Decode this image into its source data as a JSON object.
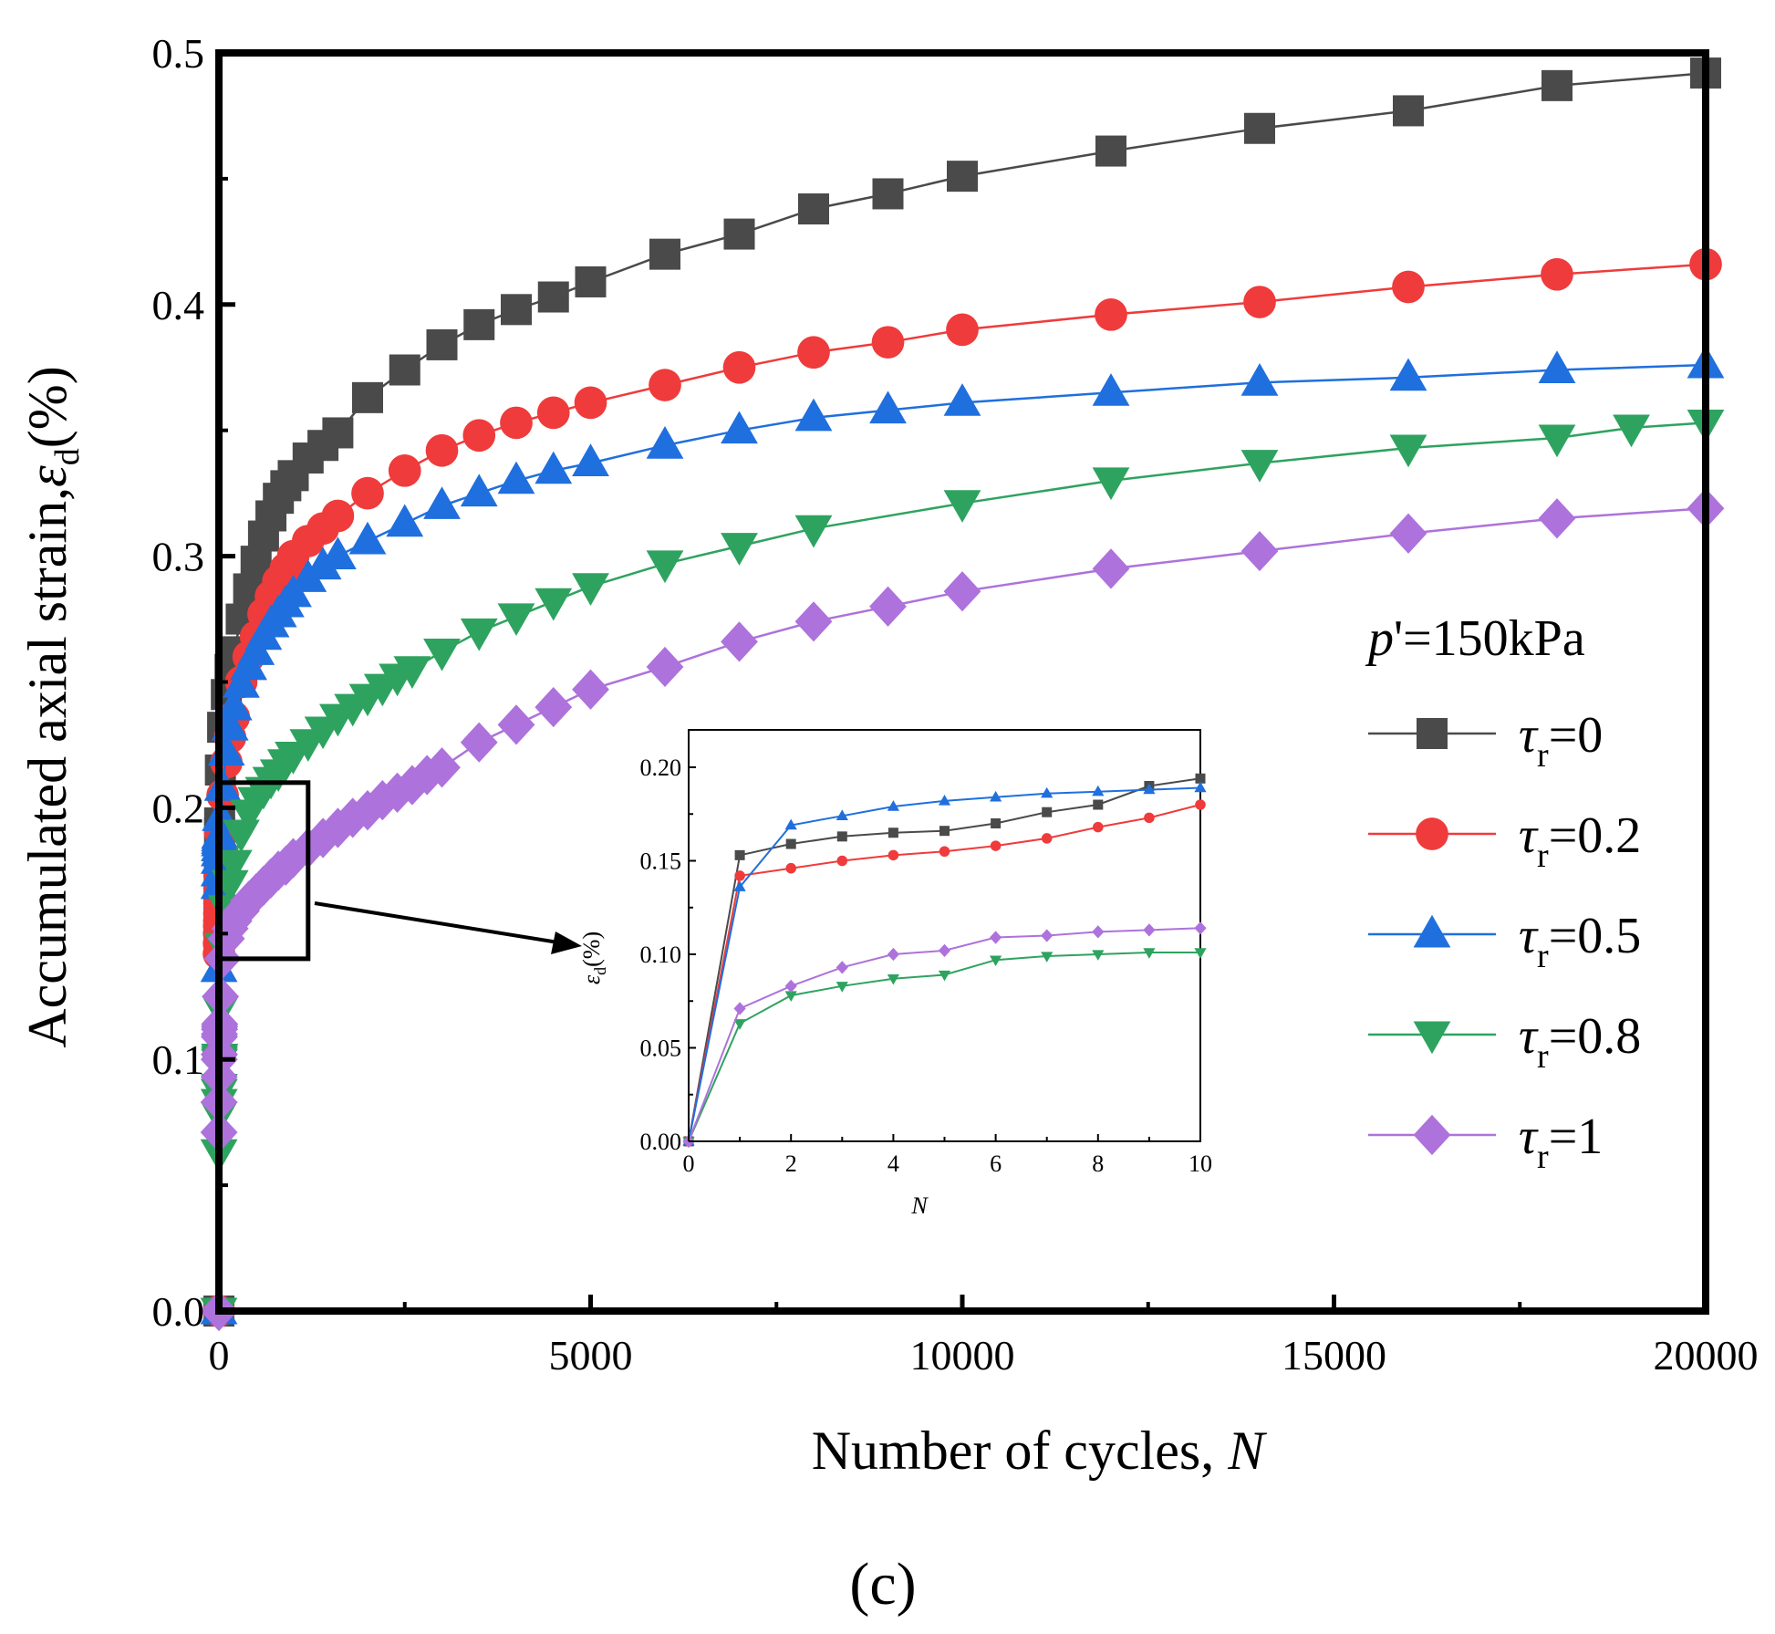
{
  "caption": "(c)",
  "chart_data": {
    "type": "line",
    "xlabel": "Number of cycles, ",
    "xlabel_var": "N",
    "ylabel": "Accumulated axial strain,",
    "ylabel_sym": "ε",
    "ylabel_sub": "d",
    "ylabel_unit": "(%)",
    "xlim": [
      0,
      20000
    ],
    "ylim": [
      0,
      0.5
    ],
    "xticks": [
      0,
      5000,
      10000,
      15000,
      20000
    ],
    "xtick_labels": [
      "0",
      "5000",
      "10000",
      "15000",
      "20000"
    ],
    "yticks": [
      0,
      0.1,
      0.2,
      0.3,
      0.4,
      0.5
    ],
    "ytick_labels": [
      "0.0",
      "0.1",
      "0.2",
      "0.3",
      "0.4",
      "0.5"
    ],
    "legend": {
      "title_var": "p",
      "title_rest": "'=150kPa",
      "position": "right",
      "symbol": "τ",
      "subscript": "r"
    },
    "series": [
      {
        "name": "=0",
        "color": "#4a4a4a",
        "marker": "square",
        "x": [
          0,
          1,
          2,
          3,
          4,
          5,
          6,
          7,
          8,
          9,
          10,
          20,
          50,
          100,
          150,
          200,
          300,
          400,
          500,
          600,
          700,
          800,
          900,
          1000,
          1200,
          1400,
          1600,
          2000,
          2500,
          3000,
          3500,
          4000,
          4500,
          5000,
          6000,
          7000,
          8000,
          9000,
          10000,
          12000,
          14000,
          16000,
          18000,
          20000
        ],
        "y": [
          0,
          0.153,
          0.159,
          0.163,
          0.165,
          0.166,
          0.17,
          0.176,
          0.18,
          0.19,
          0.194,
          0.215,
          0.232,
          0.245,
          0.255,
          0.262,
          0.275,
          0.287,
          0.298,
          0.308,
          0.316,
          0.323,
          0.328,
          0.332,
          0.339,
          0.344,
          0.349,
          0.363,
          0.374,
          0.384,
          0.392,
          0.398,
          0.403,
          0.409,
          0.42,
          0.428,
          0.438,
          0.444,
          0.451,
          0.461,
          0.47,
          0.477,
          0.487,
          0.492
        ]
      },
      {
        "name": "=0.2",
        "color": "#ef3b3b",
        "marker": "circle",
        "x": [
          0,
          1,
          2,
          3,
          4,
          5,
          6,
          7,
          8,
          9,
          10,
          20,
          50,
          100,
          150,
          200,
          300,
          400,
          500,
          600,
          700,
          800,
          900,
          1000,
          1200,
          1400,
          1600,
          2000,
          2500,
          3000,
          3500,
          4000,
          4500,
          5000,
          6000,
          7000,
          8000,
          9000,
          10000,
          12000,
          14000,
          16000,
          18000,
          20000
        ],
        "y": [
          0,
          0.142,
          0.146,
          0.15,
          0.153,
          0.155,
          0.158,
          0.162,
          0.168,
          0.173,
          0.18,
          0.19,
          0.205,
          0.218,
          0.228,
          0.236,
          0.25,
          0.26,
          0.268,
          0.277,
          0.284,
          0.29,
          0.295,
          0.3,
          0.306,
          0.311,
          0.316,
          0.325,
          0.334,
          0.342,
          0.348,
          0.353,
          0.357,
          0.361,
          0.368,
          0.375,
          0.381,
          0.385,
          0.39,
          0.396,
          0.401,
          0.407,
          0.412,
          0.416
        ]
      },
      {
        "name": "=0.5",
        "color": "#1f6fde",
        "marker": "triangle-up",
        "x": [
          0,
          1,
          2,
          3,
          4,
          5,
          6,
          7,
          8,
          9,
          10,
          20,
          50,
          100,
          150,
          200,
          300,
          400,
          500,
          600,
          700,
          800,
          900,
          1000,
          1200,
          1400,
          1600,
          2000,
          2500,
          3000,
          3500,
          4000,
          4500,
          5000,
          6000,
          7000,
          8000,
          9000,
          10000,
          12000,
          14000,
          16000,
          18000,
          20000
        ],
        "y": [
          0,
          0.136,
          0.169,
          0.174,
          0.179,
          0.182,
          0.184,
          0.186,
          0.187,
          0.188,
          0.189,
          0.196,
          0.208,
          0.222,
          0.232,
          0.24,
          0.249,
          0.256,
          0.262,
          0.268,
          0.273,
          0.277,
          0.281,
          0.285,
          0.291,
          0.296,
          0.3,
          0.306,
          0.313,
          0.32,
          0.325,
          0.33,
          0.334,
          0.337,
          0.344,
          0.35,
          0.355,
          0.358,
          0.361,
          0.365,
          0.369,
          0.371,
          0.374,
          0.376
        ]
      },
      {
        "name": "=0.8",
        "color": "#2ea35f",
        "marker": "triangle-down",
        "x": [
          0,
          1,
          2,
          3,
          4,
          5,
          6,
          7,
          8,
          9,
          10,
          20,
          50,
          100,
          150,
          200,
          300,
          400,
          500,
          600,
          700,
          800,
          900,
          1000,
          1200,
          1400,
          1600,
          1800,
          2000,
          2200,
          2400,
          2600,
          3000,
          3500,
          4000,
          4500,
          5000,
          6000,
          7000,
          8000,
          10000,
          12000,
          14000,
          16000,
          18000,
          19000,
          20000
        ],
        "y": [
          0,
          0.063,
          0.078,
          0.083,
          0.087,
          0.089,
          0.097,
          0.099,
          0.1,
          0.101,
          0.101,
          0.12,
          0.145,
          0.16,
          0.17,
          0.178,
          0.19,
          0.198,
          0.203,
          0.207,
          0.211,
          0.214,
          0.218,
          0.221,
          0.226,
          0.231,
          0.236,
          0.24,
          0.244,
          0.248,
          0.252,
          0.255,
          0.262,
          0.27,
          0.276,
          0.282,
          0.288,
          0.297,
          0.304,
          0.311,
          0.321,
          0.33,
          0.337,
          0.343,
          0.347,
          0.351,
          0.353
        ]
      },
      {
        "name": "=1",
        "color": "#ad72db",
        "marker": "diamond",
        "x": [
          0,
          1,
          2,
          3,
          4,
          5,
          6,
          7,
          8,
          9,
          10,
          20,
          50,
          100,
          150,
          200,
          300,
          400,
          500,
          600,
          700,
          800,
          900,
          1000,
          1200,
          1400,
          1600,
          1800,
          2000,
          2200,
          2400,
          2600,
          2800,
          3000,
          3500,
          4000,
          4500,
          5000,
          6000,
          7000,
          8000,
          9000,
          10000,
          12000,
          14000,
          16000,
          18000,
          20000
        ],
        "y": [
          0,
          0.071,
          0.083,
          0.093,
          0.1,
          0.102,
          0.109,
          0.11,
          0.112,
          0.113,
          0.114,
          0.125,
          0.14,
          0.148,
          0.152,
          0.155,
          0.159,
          0.163,
          0.166,
          0.169,
          0.172,
          0.175,
          0.177,
          0.18,
          0.184,
          0.188,
          0.192,
          0.196,
          0.199,
          0.203,
          0.206,
          0.209,
          0.213,
          0.216,
          0.226,
          0.233,
          0.24,
          0.247,
          0.256,
          0.266,
          0.274,
          0.28,
          0.286,
          0.295,
          0.302,
          0.309,
          0.315,
          0.319
        ]
      }
    ],
    "inset": {
      "type": "line",
      "xlabel": "N",
      "ylabel_sym": "ε",
      "ylabel_sub": "d",
      "ylabel_unit": "(%)",
      "xlim": [
        0,
        10
      ],
      "ylim": [
        0,
        0.22
      ],
      "xticks": [
        0,
        2,
        4,
        6,
        8,
        10
      ],
      "xtick_labels": [
        "0",
        "2",
        "4",
        "6",
        "8",
        "10"
      ],
      "yticks": [
        0,
        0.05,
        0.1,
        0.15,
        0.2
      ],
      "ytick_labels": [
        "0.00",
        "0.05",
        "0.10",
        "0.15",
        "0.20"
      ],
      "x": [
        0,
        1,
        2,
        3,
        4,
        5,
        6,
        7,
        8,
        9,
        10
      ],
      "series": [
        {
          "color": "#4a4a4a",
          "marker": "square",
          "y": [
            0,
            0.153,
            0.159,
            0.163,
            0.165,
            0.166,
            0.17,
            0.176,
            0.18,
            0.19,
            0.194
          ]
        },
        {
          "color": "#ef3b3b",
          "marker": "circle",
          "y": [
            0,
            0.142,
            0.146,
            0.15,
            0.153,
            0.155,
            0.158,
            0.162,
            0.168,
            0.173,
            0.18
          ]
        },
        {
          "color": "#1f6fde",
          "marker": "triangle-up",
          "y": [
            0,
            0.136,
            0.169,
            0.174,
            0.179,
            0.182,
            0.184,
            0.186,
            0.187,
            0.188,
            0.189
          ]
        },
        {
          "color": "#2ea35f",
          "marker": "triangle-down",
          "y": [
            0,
            0.063,
            0.078,
            0.083,
            0.087,
            0.089,
            0.097,
            0.099,
            0.1,
            0.101,
            0.101
          ]
        },
        {
          "color": "#ad72db",
          "marker": "diamond",
          "y": [
            0,
            0.071,
            0.083,
            0.093,
            0.1,
            0.102,
            0.109,
            0.11,
            0.112,
            0.113,
            0.114
          ]
        }
      ]
    },
    "zoom_box": {
      "x": [
        0,
        1200
      ],
      "y": [
        0.14,
        0.21
      ]
    }
  }
}
